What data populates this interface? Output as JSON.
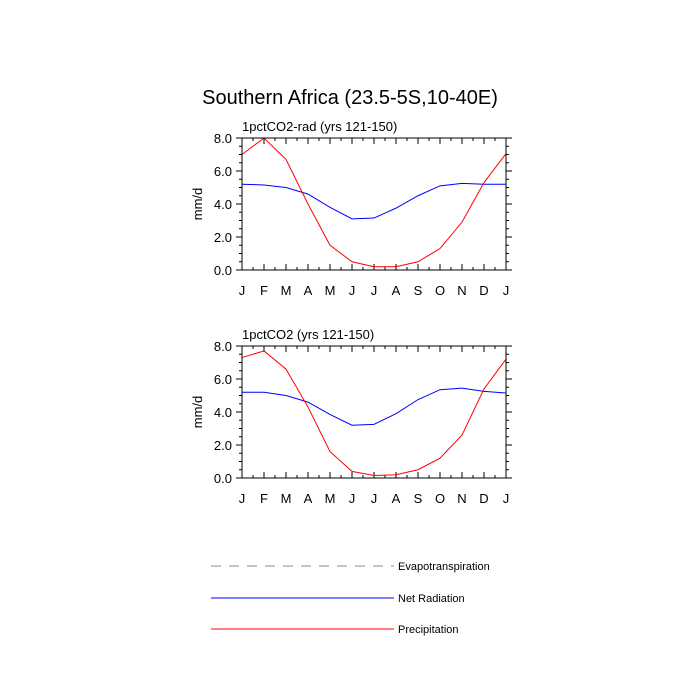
{
  "title": "Southern Africa (23.5-5S,10-40E)",
  "legend": [
    {
      "name": "Evapotranspiration",
      "color": "#888888",
      "dash": true
    },
    {
      "name": "Net Radiation",
      "color": "#0000ff",
      "dash": false
    },
    {
      "name": "Precipitation",
      "color": "#ff0000",
      "dash": false
    }
  ],
  "chart_data": [
    {
      "type": "line",
      "title": "1pctCO2-rad (yrs 121-150)",
      "ylabel": "mm/d",
      "xlabel": "",
      "categories": [
        "J",
        "F",
        "M",
        "A",
        "M",
        "J",
        "J",
        "A",
        "S",
        "O",
        "N",
        "D",
        "J"
      ],
      "yticks": [
        "0.0",
        "2.0",
        "4.0",
        "6.0",
        "8.0"
      ],
      "ylim": [
        0,
        8
      ],
      "grid": false,
      "series": [
        {
          "name": "Net Radiation",
          "color": "#0000ff",
          "values": [
            5.2,
            5.15,
            5.0,
            4.6,
            3.8,
            3.1,
            3.15,
            3.75,
            4.5,
            5.1,
            5.25,
            5.2,
            5.2
          ]
        },
        {
          "name": "Precipitation",
          "color": "#ff0000",
          "values": [
            7.0,
            8.0,
            6.7,
            4.0,
            1.5,
            0.5,
            0.2,
            0.2,
            0.5,
            1.3,
            2.9,
            5.3,
            7.05
          ]
        }
      ]
    },
    {
      "type": "line",
      "title": "1pctCO2 (yrs 121-150)",
      "ylabel": "mm/d",
      "xlabel": "",
      "categories": [
        "J",
        "F",
        "M",
        "A",
        "M",
        "J",
        "J",
        "A",
        "S",
        "O",
        "N",
        "D",
        "J"
      ],
      "yticks": [
        "0.0",
        "2.0",
        "4.0",
        "6.0",
        "8.0"
      ],
      "ylim": [
        0,
        8
      ],
      "grid": false,
      "series": [
        {
          "name": "Net Radiation",
          "color": "#0000ff",
          "values": [
            5.2,
            5.2,
            5.0,
            4.6,
            3.85,
            3.2,
            3.25,
            3.9,
            4.75,
            5.35,
            5.45,
            5.25,
            5.15
          ]
        },
        {
          "name": "Precipitation",
          "color": "#ff0000",
          "values": [
            7.3,
            7.7,
            6.6,
            4.3,
            1.6,
            0.4,
            0.15,
            0.2,
            0.5,
            1.2,
            2.6,
            5.4,
            7.2
          ]
        }
      ]
    }
  ]
}
